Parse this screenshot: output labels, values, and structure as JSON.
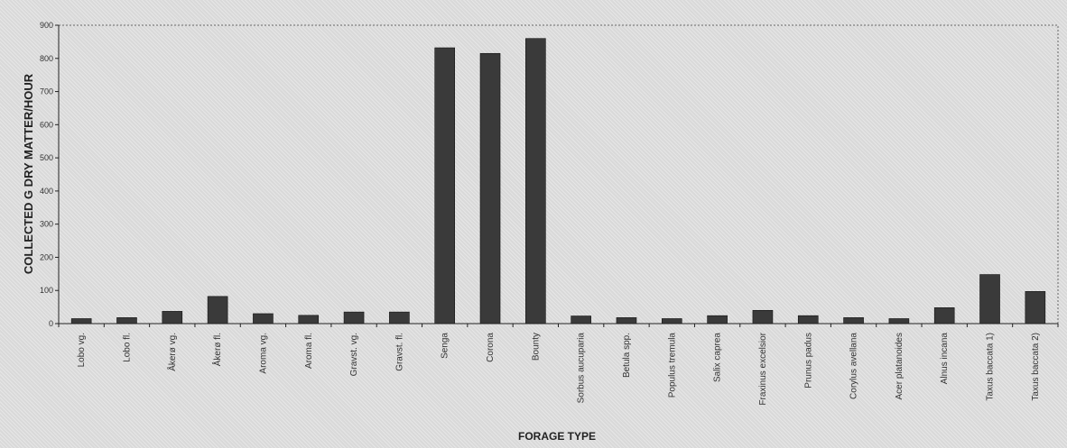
{
  "chart_data": {
    "type": "bar",
    "xlabel": "FORAGE TYPE",
    "ylabel": "COLLECTED G DRY MATTER/HOUR",
    "ylim": [
      0,
      900
    ],
    "yticks": [
      0,
      100,
      200,
      300,
      400,
      500,
      600,
      700,
      800,
      900
    ],
    "categories": [
      "Lobo vg.",
      "Lobo fl.",
      "Åkerø vg.",
      "Åkerø fl.",
      "Aroma vg.",
      "Aroma fl.",
      "Gravst. vg.",
      "Gravst. fl.",
      "Senga",
      "Corona",
      "Bounty",
      "Sorbus aucuparia",
      "Betula spp.",
      "Populus tremula",
      "Salix caprea",
      "Fraxinus excelsior",
      "Prunus padus",
      "Corylus avellana",
      "Acer platanoides",
      "Alnus incana",
      "Taxus baccata 1)",
      "Taxus baccata 2)"
    ],
    "values": [
      15,
      18,
      37,
      82,
      30,
      25,
      35,
      35,
      832,
      815,
      860,
      23,
      18,
      15,
      24,
      40,
      24,
      18,
      15,
      48,
      148,
      97
    ],
    "grid": false,
    "legend": "none",
    "bar_color": "#3a3a3a"
  }
}
